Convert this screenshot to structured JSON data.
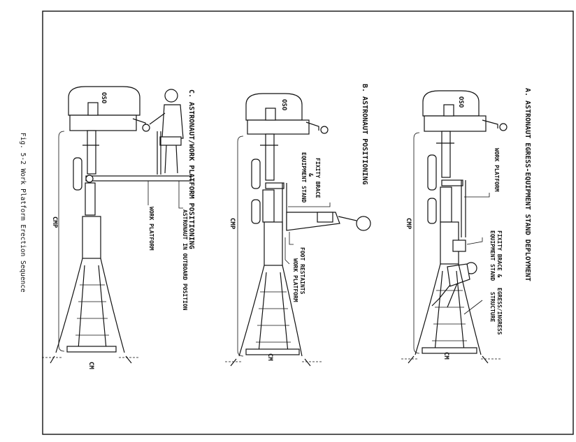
{
  "figure_caption": "Fig. 5-2   Work Platform Erection Sequence",
  "panels": {
    "a": {
      "title": "A. ASTRONAUT EGRESS-EQUIPMENT STAND DEPLOYMENT",
      "oso": "OSO",
      "cmp": "CMP",
      "cm": "CM",
      "labels": {
        "work_platform": "WORK PLATFORM",
        "fixity_brace_1": "FIXITY BRACE &",
        "fixity_brace_2": "EQUIPMENT STAND",
        "egress_1": "EGRESS/INGRESS",
        "egress_2": "STRUCTURE"
      }
    },
    "b": {
      "title": "B. ASTRONAUT POSITIONING",
      "oso": "OSO",
      "cmp": "CMP",
      "cm": "CM",
      "labels": {
        "fixity_1": "FIXITY BRACE",
        "fixity_2": "&",
        "fixity_3": "EQUIPMENT STAND",
        "foot_restraints": "FOOT RESTAINTS",
        "work_platform": "WORK PLATFORM"
      }
    },
    "c": {
      "title": "C. ASTRONAUT/WORK PLATFORM POSITIONING",
      "oso": "OSO",
      "cmp": "CMP",
      "cm": "CM",
      "labels": {
        "astronaut_outboard": "ASTRONAUT IN OUTBOARD POSITION",
        "work_platform": "WORK PLATFORM"
      }
    }
  }
}
